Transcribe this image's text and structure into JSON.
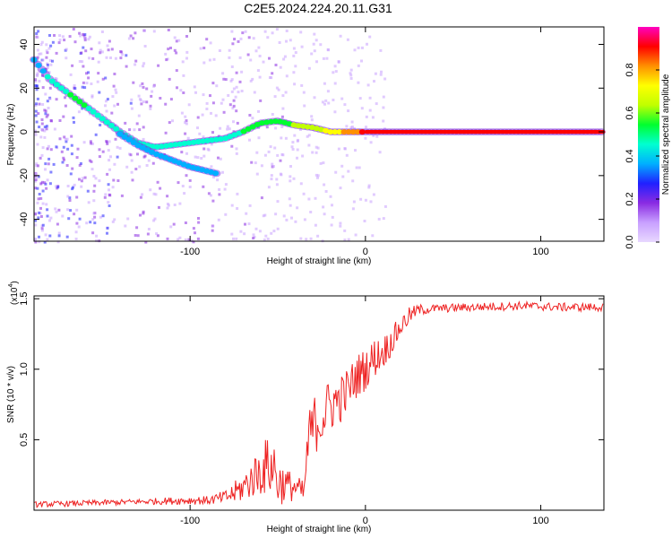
{
  "title": "C2E5.2024.224.20.11.G31",
  "chart_data": [
    {
      "type": "heatmap",
      "xlabel": "Height of straight line (km)",
      "ylabel": "Frequency (Hz)",
      "xlim": [
        -189,
        136
      ],
      "ylim": [
        -50,
        48
      ],
      "xticks": [
        -100,
        0,
        100
      ],
      "xtick_labels": [
        "-100",
        "0",
        "100"
      ],
      "yticks": [
        -40,
        -20,
        0,
        20,
        40
      ],
      "ytick_labels": [
        "-40",
        "-20",
        "0",
        "20",
        "40"
      ],
      "grid": false,
      "colorbar": {
        "label": "Normalized spectral amplitude",
        "range": [
          0,
          1
        ],
        "ticks": [
          0.0,
          0.2,
          0.4,
          0.6,
          0.8
        ],
        "tick_labels": [
          "0.0",
          "0.2",
          "0.4",
          "0.6",
          "0.8"
        ],
        "colors": [
          "#e8d8ff",
          "#c8a0ff",
          "#8a2be2",
          "#2020ff",
          "#00b0ff",
          "#00ffd0",
          "#00ff30",
          "#c0ff00",
          "#ffff00",
          "#ff9000",
          "#ff0000",
          "#ff00c0"
        ]
      },
      "tracks": [
        {
          "x": [
            -189,
            -180,
            -170,
            -160,
            -150,
            -140,
            -130,
            -120,
            -110,
            -100,
            -90,
            -80,
            -70,
            -60,
            -50,
            -40,
            -30,
            -20,
            -10,
            0,
            20,
            60,
            100,
            136
          ],
          "y": [
            33,
            24,
            18,
            12,
            6,
            0,
            -5,
            -7,
            -6,
            -5,
            -4,
            -3,
            0,
            4,
            5,
            3,
            2,
            0,
            0,
            0,
            0,
            0,
            0,
            0
          ],
          "amplitude": [
            0.35,
            0.45,
            0.5,
            0.5,
            0.45,
            0.45,
            0.45,
            0.45,
            0.45,
            0.45,
            0.45,
            0.45,
            0.5,
            0.55,
            0.55,
            0.6,
            0.65,
            0.7,
            0.8,
            0.9,
            0.95,
            0.95,
            0.95,
            0.95
          ]
        },
        {
          "x": [
            -140,
            -130,
            -120,
            -110,
            -100,
            -90,
            -85
          ],
          "y": [
            -1,
            -6,
            -10,
            -13,
            -16,
            -18,
            -19
          ],
          "amplitude": [
            0.4,
            0.4,
            0.4,
            0.4,
            0.4,
            0.35,
            0.35
          ]
        }
      ]
    },
    {
      "type": "line",
      "xlabel": "Height of straight line (km)",
      "ylabel": "SNR (10 * v/v)",
      "y_multiplier": "(x10",
      "y_exponent": "4",
      "xlim": [
        -189,
        136
      ],
      "ylim": [
        0.0,
        1.52
      ],
      "xticks": [
        -100,
        0,
        100
      ],
      "xtick_labels": [
        "-100",
        "0",
        "100"
      ],
      "yticks": [
        0.5,
        1.0,
        1.5
      ],
      "ytick_labels": [
        "0.5",
        "1.0",
        "1.5"
      ],
      "grid": false,
      "series": [
        {
          "color": "#ee2222",
          "x": [
            -189,
            -160,
            -130,
            -100,
            -90,
            -80,
            -75,
            -70,
            -65,
            -60,
            -55,
            -52,
            -50,
            -45,
            -40,
            -35,
            -33,
            -30,
            -25,
            -20,
            -15,
            -10,
            -5,
            0,
            5,
            10,
            15,
            20,
            25,
            30,
            40,
            60,
            90,
            110,
            136
          ],
          "y": [
            0.04,
            0.05,
            0.06,
            0.07,
            0.07,
            0.09,
            0.12,
            0.16,
            0.22,
            0.28,
            0.32,
            0.3,
            0.2,
            0.18,
            0.16,
            0.12,
            0.45,
            0.6,
            0.65,
            0.75,
            0.78,
            0.85,
            0.95,
            1.0,
            1.08,
            1.12,
            1.2,
            1.3,
            1.38,
            1.42,
            1.43,
            1.44,
            1.45,
            1.44,
            1.44
          ],
          "noise": [
            0.02,
            0.02,
            0.02,
            0.03,
            0.03,
            0.05,
            0.08,
            0.1,
            0.14,
            0.18,
            0.22,
            0.22,
            0.18,
            0.12,
            0.1,
            0.08,
            0.22,
            0.22,
            0.2,
            0.2,
            0.18,
            0.16,
            0.16,
            0.15,
            0.14,
            0.12,
            0.1,
            0.08,
            0.06,
            0.04,
            0.03,
            0.03,
            0.03,
            0.03,
            0.03
          ]
        }
      ]
    }
  ]
}
